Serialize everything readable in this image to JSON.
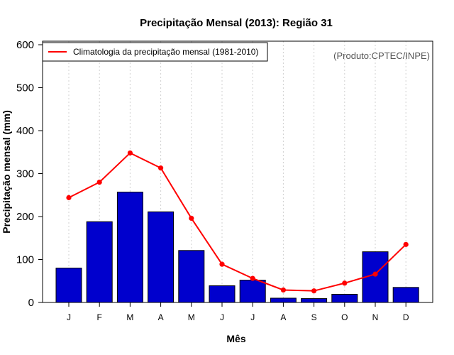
{
  "chart_data": {
    "type": "bar",
    "title": "Precipitação Mensal (2013): Região 31",
    "xlabel": "Mês",
    "ylabel": "Precipitação mensal (mm)",
    "categories": [
      "J",
      "F",
      "M",
      "A",
      "M",
      "J",
      "J",
      "A",
      "S",
      "O",
      "N",
      "D"
    ],
    "ylim": [
      0,
      600
    ],
    "yticks": [
      0,
      100,
      200,
      300,
      400,
      500,
      600
    ],
    "grid": "vertical dotted",
    "bar_color": "#0000cd",
    "line_color": "#ff0000",
    "series": [
      {
        "name": "Precipitação mensal 2013",
        "type": "bar",
        "values": [
          80,
          188,
          257,
          211,
          121,
          39,
          52,
          10,
          9,
          19,
          118,
          35
        ]
      },
      {
        "name": "Climatologia da precipitação mensal (1981-2010)",
        "type": "line",
        "values": [
          244,
          280,
          348,
          313,
          196,
          89,
          56,
          29,
          27,
          45,
          66,
          135
        ]
      }
    ],
    "legend": {
      "position": "top-left",
      "entries": [
        "Climatologia da precipitação mensal (1981-2010)"
      ]
    },
    "annotation": "(Produto:CPTEC/INPE)"
  }
}
